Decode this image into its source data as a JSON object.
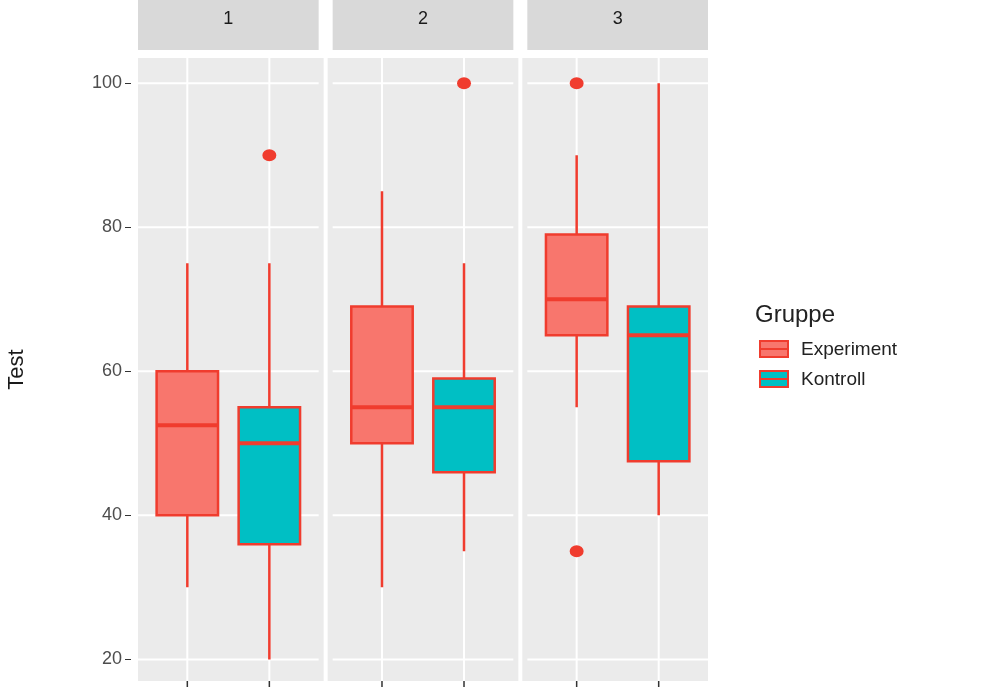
{
  "chart_data": {
    "type": "box",
    "ylabel": "Test",
    "categories": [
      "1",
      "2",
      "3"
    ],
    "ylim": [
      17,
      103.5
    ],
    "yticks": [
      20,
      40,
      60,
      80,
      100
    ],
    "grid": true,
    "legend": "right",
    "legend_title": "Gruppe",
    "series": [
      {
        "name": "Experiment",
        "color": "#f8766d",
        "boxes": [
          {
            "low": 30,
            "q1": 40,
            "median": 52.5,
            "q3": 60,
            "high": 75
          },
          {
            "low": 30,
            "q1": 50,
            "median": 55,
            "q3": 69,
            "high": 85
          },
          {
            "low": 55,
            "q1": 65,
            "median": 70,
            "q3": 79,
            "high": 90,
            "outliers": [
              100,
              35
            ]
          }
        ]
      },
      {
        "name": "Kontroll",
        "color": "#00bfc4",
        "boxes": [
          {
            "low": 20,
            "q1": 36,
            "median": 50,
            "q3": 55,
            "high": 75,
            "outliers": [
              90
            ]
          },
          {
            "low": 35,
            "q1": 46,
            "median": 55,
            "q3": 59,
            "high": 75,
            "outliers": [
              100
            ]
          },
          {
            "low": 40,
            "q1": 47.5,
            "median": 65,
            "q3": 69,
            "high": 100
          }
        ]
      }
    ]
  }
}
